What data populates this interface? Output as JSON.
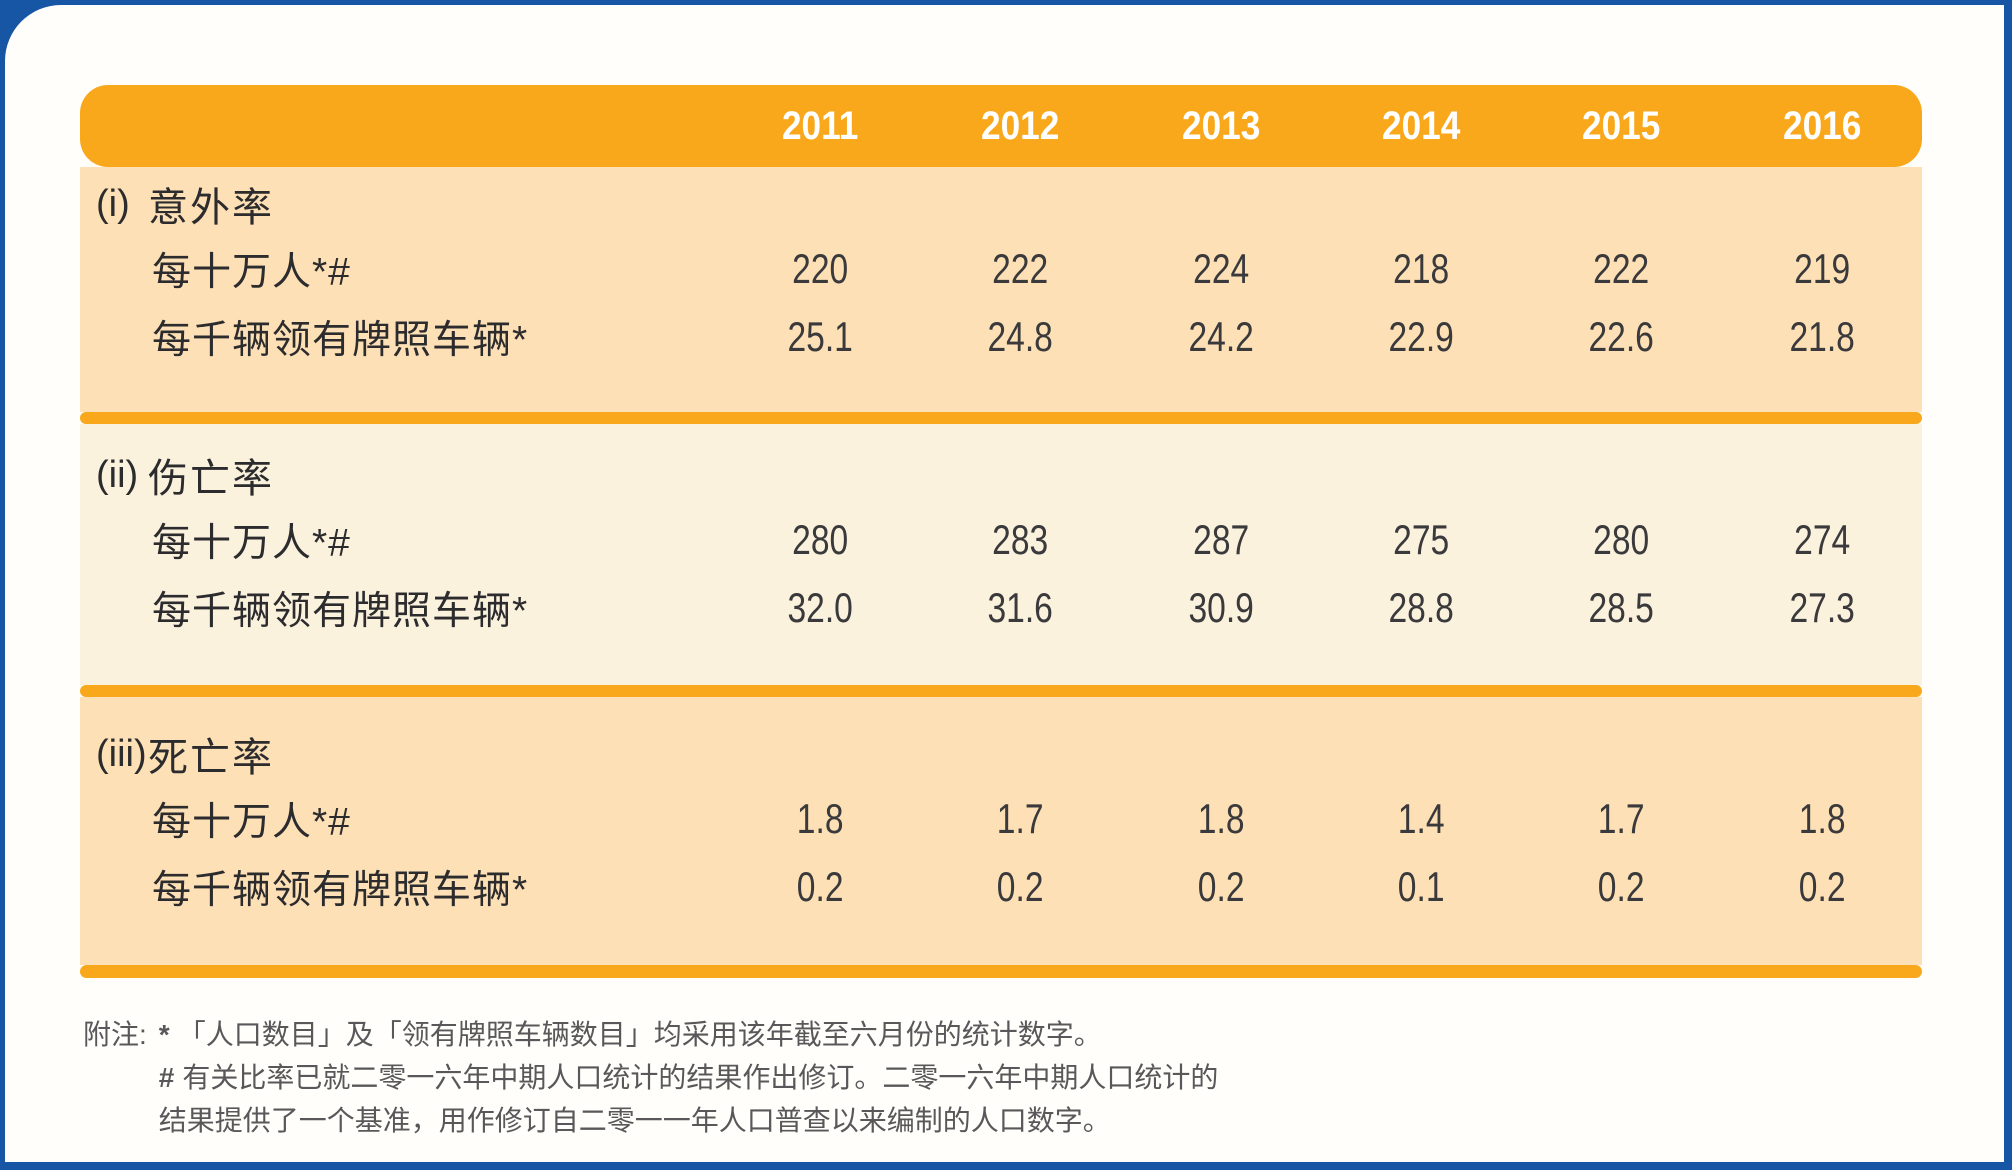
{
  "page": {
    "frame_blue": "#1656A4",
    "sheet_color": "#FFFEFA"
  },
  "table": {
    "colors": {
      "header_orange": "#F9A81B",
      "band_peach": "#FDE0B5",
      "band_cream": "#FBF2DE",
      "divider_orange": "#F9A81B",
      "year_text": "#FFFFFF"
    },
    "header": {
      "years": [
        "2011",
        "2012",
        "2013",
        "2014",
        "2015",
        "2016"
      ]
    },
    "sections": [
      {
        "marker": "(i)",
        "title": "意外率",
        "rows": [
          {
            "label": "每十万人*#",
            "values": [
              "220",
              "222",
              "224",
              "218",
              "222",
              "219"
            ]
          },
          {
            "label": "每千辆领有牌照车辆*",
            "values": [
              "25.1",
              "24.8",
              "24.2",
              "22.9",
              "22.6",
              "21.8"
            ]
          }
        ]
      },
      {
        "marker": "(ii)",
        "title": "伤亡率",
        "rows": [
          {
            "label": "每十万人*#",
            "values": [
              "280",
              "283",
              "287",
              "275",
              "280",
              "274"
            ]
          },
          {
            "label": "每千辆领有牌照车辆*",
            "values": [
              "32.0",
              "31.6",
              "30.9",
              "28.8",
              "28.5",
              "27.3"
            ]
          }
        ]
      },
      {
        "marker": "(iii)",
        "title": "死亡率",
        "rows": [
          {
            "label": "每十万人*#",
            "values": [
              "1.8",
              "1.7",
              "1.8",
              "1.4",
              "1.7",
              "1.8"
            ]
          },
          {
            "label": "每千辆领有牌照车辆*",
            "values": [
              "0.2",
              "0.2",
              "0.2",
              "0.1",
              "0.2",
              "0.2"
            ]
          }
        ]
      }
    ]
  },
  "footnotes": {
    "label": "附注:",
    "text_color": "#58585A",
    "notes": [
      {
        "marker": "*",
        "lines": [
          "「人口数目」及「领有牌照车辆数目」均采用该年截至六月份的统计数字。"
        ]
      },
      {
        "marker": "#",
        "lines": [
          "有关比率已就二零一六年中期人口统计的结果作出修订。二零一六年中期人口统计的",
          "结果提供了一个基准，用作修订自二零一一年人口普查以来编制的人口数字。"
        ]
      }
    ]
  }
}
